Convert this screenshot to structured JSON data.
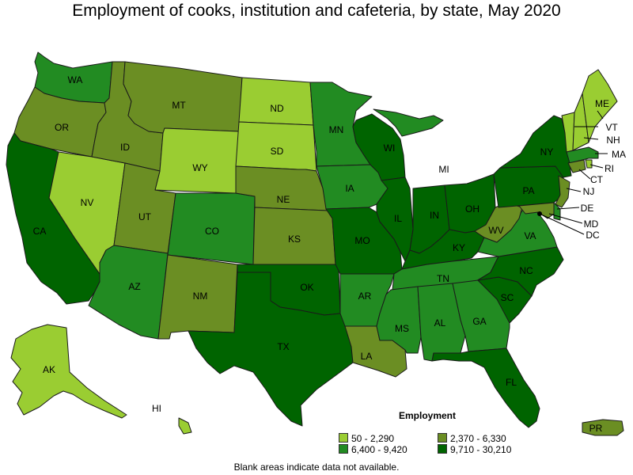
{
  "title": "Employment of cooks, institution and cafeteria, by state, May 2020",
  "legend": {
    "title": "Employment",
    "items": [
      {
        "label": "50 - 2,290",
        "color": "#9acd32"
      },
      {
        "label": "2,370 - 6,330",
        "color": "#6b8e23"
      },
      {
        "label": "6,400 - 9,420",
        "color": "#228b22"
      },
      {
        "label": "9,710 - 30,210",
        "color": "#006400"
      }
    ]
  },
  "footnote": "Blank areas indicate data not available.",
  "state_labels": [
    "WA",
    "OR",
    "CA",
    "NV",
    "ID",
    "MT",
    "WY",
    "UT",
    "AZ",
    "CO",
    "NM",
    "ND",
    "SD",
    "NE",
    "KS",
    "OK",
    "TX",
    "MN",
    "IA",
    "MO",
    "AR",
    "LA",
    "WI",
    "IL",
    "MI",
    "IN",
    "OH",
    "KY",
    "TN",
    "MS",
    "AL",
    "GA",
    "FL",
    "SC",
    "NC",
    "VA",
    "WV",
    "PA",
    "NY",
    "ME",
    "VT",
    "NH",
    "MA",
    "RI",
    "CT",
    "NJ",
    "DE",
    "MD",
    "DC",
    "AK",
    "HI",
    "PR"
  ]
}
